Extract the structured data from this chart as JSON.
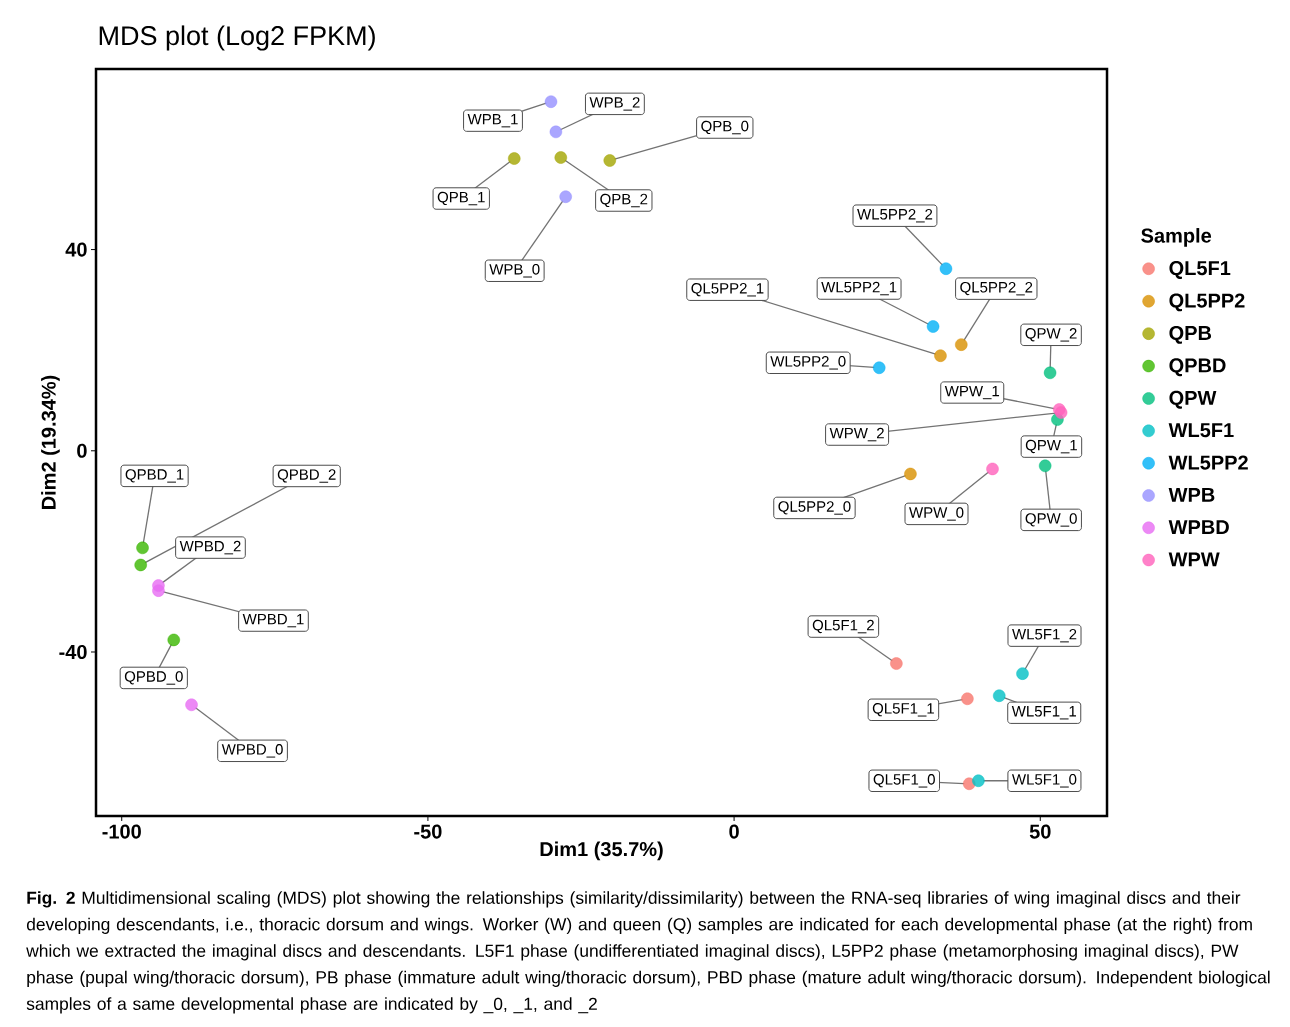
{
  "chart_data": {
    "type": "scatter",
    "title": "MDS plot (Log2 FPKM)",
    "xlabel": "Dim1 (35.7%)",
    "ylabel": "Dim2 (19.34%)",
    "legend_title": "Sample",
    "legend": "right",
    "marker": "circle",
    "grid": false,
    "xlim": [
      -104.2,
      60.9
    ],
    "ylim": [
      -72.6,
      75.9
    ],
    "xticks": [
      -100,
      -50,
      0,
      50
    ],
    "yticks": [
      -40,
      0,
      40
    ],
    "series": [
      {
        "name": "QL5F1",
        "color": "#F8766D",
        "x": [
          38.4,
          38.1,
          26.5
        ],
        "values": [
          -66.2,
          -49.3,
          -42.3
        ]
      },
      {
        "name": "QL5PP2",
        "color": "#D89000",
        "x": [
          28.8,
          33.7,
          37.1
        ],
        "values": [
          -4.6,
          18.9,
          21.1
        ]
      },
      {
        "name": "QPB",
        "color": "#A3A500",
        "x": [
          -20.3,
          -35.9,
          -28.3
        ],
        "values": [
          57.7,
          58.1,
          58.3
        ]
      },
      {
        "name": "QPBD",
        "color": "#39B600",
        "x": [
          -91.5,
          -96.6,
          -96.9
        ],
        "values": [
          -37.6,
          -19.3,
          -22.7
        ]
      },
      {
        "name": "QPW",
        "color": "#00BF7D",
        "x": [
          50.8,
          52.8,
          51.6
        ],
        "values": [
          -3.0,
          6.2,
          15.5
        ]
      },
      {
        "name": "WL5F1",
        "color": "#00BFC4",
        "x": [
          39.9,
          43.3,
          47.1
        ],
        "values": [
          -65.6,
          -48.7,
          -44.3
        ]
      },
      {
        "name": "WL5PP2",
        "color": "#00B0F6",
        "x": [
          23.7,
          32.5,
          34.6
        ],
        "values": [
          16.5,
          24.7,
          36.2
        ]
      },
      {
        "name": "WPB",
        "color": "#9590FF",
        "x": [
          -27.5,
          -29.9,
          -29.1
        ],
        "values": [
          50.5,
          69.4,
          63.4
        ]
      },
      {
        "name": "WPBD",
        "color": "#E76BF3",
        "x": [
          -88.6,
          -94.0,
          -94.0
        ],
        "values": [
          -50.5,
          -27.8,
          -26.8
        ]
      },
      {
        "name": "WPW",
        "color": "#FF62BC",
        "x": [
          42.2,
          53.1,
          53.4
        ],
        "values": [
          -3.6,
          8.2,
          7.6
        ]
      }
    ],
    "annotations": [
      "**Fig. 2** Multidimensional scaling (MDS) plot showing the relationships (similarity/dissimilarity) between the RNA-seq libraries of wing imaginal discs and their developing descendants, i.e., thoracic dorsum and wings. Worker (W) and queen (Q) samples are indicated for each developmental phase (at the right) from which we extracted the imaginal discs and descendants. L5F1 phase (undifferentiated imaginal discs), L5PP2 phase (metamorphosing imaginal discs), PW phase (pupal wing/thoracic dorsum), PB phase (immature adult wing/thoracic dorsum), PBD phase (mature adult wing/thoracic dorsum). Independent biological samples of a same developmental phase are indicated by _0, _1, and _2",
      {
        "text": "QL5F1_0",
        "x": 38.4,
        "y": -66.2
      },
      {
        "text": "QL5F1_1",
        "x": 38.1,
        "y": -49.3
      },
      {
        "text": "QL5F1_2",
        "x": 26.5,
        "y": -42.3
      },
      {
        "text": "QL5PP2_0",
        "x": 28.8,
        "y": -4.6
      },
      {
        "text": "QL5PP2_1",
        "x": 33.7,
        "y": 18.9
      },
      {
        "text": "QL5PP2_2",
        "x": 37.1,
        "y": 21.1
      },
      {
        "text": "QPB_0",
        "x": -20.3,
        "y": 57.7
      },
      {
        "text": "QPB_1",
        "x": -35.9,
        "y": 58.1
      },
      {
        "text": "QPB_2",
        "x": -28.3,
        "y": 58.3
      },
      {
        "text": "QPBD_0",
        "x": -91.5,
        "y": -37.6
      },
      {
        "text": "QPBD_1",
        "x": -96.6,
        "y": -19.3
      },
      {
        "text": "QPBD_2",
        "x": -96.9,
        "y": -22.7
      },
      {
        "text": "QPW_0",
        "x": 50.8,
        "y": -3.0
      },
      {
        "text": "QPW_1",
        "x": 52.8,
        "y": 6.2
      },
      {
        "text": "QPW_2",
        "x": 51.6,
        "y": 15.5
      },
      {
        "text": "WL5F1_0",
        "x": 39.9,
        "y": -65.6
      },
      {
        "text": "WL5F1_1",
        "x": 43.3,
        "y": -48.7
      },
      {
        "text": "WL5F1_2",
        "x": 47.1,
        "y": -44.3
      },
      {
        "text": "WL5PP2_0",
        "x": 23.7,
        "y": 16.5
      },
      {
        "text": "WL5PP2_1",
        "x": 32.5,
        "y": 24.7
      },
      {
        "text": "WL5PP2_2",
        "x": 34.6,
        "y": 36.2
      },
      {
        "text": "WPB_0",
        "x": -27.5,
        "y": 50.5
      },
      {
        "text": "WPB_1",
        "x": -29.9,
        "y": 69.4
      },
      {
        "text": "WPB_2",
        "x": -29.1,
        "y": 63.4
      },
      {
        "text": "WPBD_0",
        "x": -88.6,
        "y": -50.5
      },
      {
        "text": "WPBD_1",
        "x": -94.0,
        "y": -27.8
      },
      {
        "text": "WPBD_2",
        "x": -94.0,
        "y": -26.8
      },
      {
        "text": "WPW_0",
        "x": 42.2,
        "y": -3.6
      },
      {
        "text": "WPW_1",
        "x": 53.1,
        "y": 8.2
      },
      {
        "text": "WPW_2",
        "x": 53.4,
        "y": 7.6
      }
    ]
  }
}
